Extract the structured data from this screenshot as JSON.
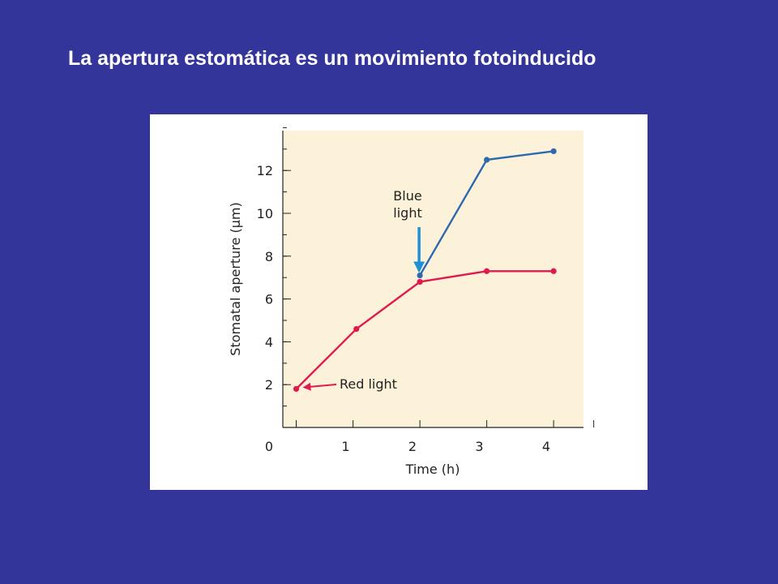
{
  "slide": {
    "title": "La apertura estomática es un movimiento fotoinducido"
  },
  "colors": {
    "background": "#34359a",
    "plot_background": "#fcf2d9",
    "red_series": "#e0194f",
    "blue_series": "#2e68b0",
    "arrow_blue": "#1f8fd6"
  },
  "chart_data": {
    "type": "line",
    "title": "",
    "xlabel": "Time (h)",
    "ylabel": "Stomatal aperture (μm)",
    "xlim": [
      0,
      4.6
    ],
    "ylim": [
      0,
      14
    ],
    "x_ticks": [
      0,
      1,
      2,
      3,
      4
    ],
    "y_ticks": [
      2,
      4,
      6,
      8,
      10,
      12
    ],
    "x_tick_labels": [
      "0",
      "1",
      "2",
      "3",
      "4"
    ],
    "y_tick_labels": [
      "2",
      "4",
      "6",
      "8",
      "10",
      "12"
    ],
    "grid": false,
    "series": [
      {
        "color": "#e0194f",
        "points": [
          {
            "x": 0.2,
            "y": 1.8
          },
          {
            "x": 1.1,
            "y": 4.6
          },
          {
            "x": 2.05,
            "y": 6.8
          },
          {
            "x": 3.05,
            "y": 7.3
          },
          {
            "x": 4.05,
            "y": 7.3
          }
        ]
      },
      {
        "color": "#2e68b0",
        "points": [
          {
            "x": 2.05,
            "y": 7.1
          },
          {
            "x": 3.05,
            "y": 12.5
          },
          {
            "x": 4.05,
            "y": 12.9
          }
        ]
      }
    ],
    "annotations": [
      {
        "lines": [
          "Blue",
          "light"
        ],
        "arrow_to": {
          "x": 2.05,
          "y": 7.1
        },
        "color": "#1f8fd6"
      },
      {
        "lines": [
          "Red light"
        ],
        "arrow_to": {
          "x": 0.2,
          "y": 1.8
        },
        "color": "#e0194f"
      }
    ]
  }
}
